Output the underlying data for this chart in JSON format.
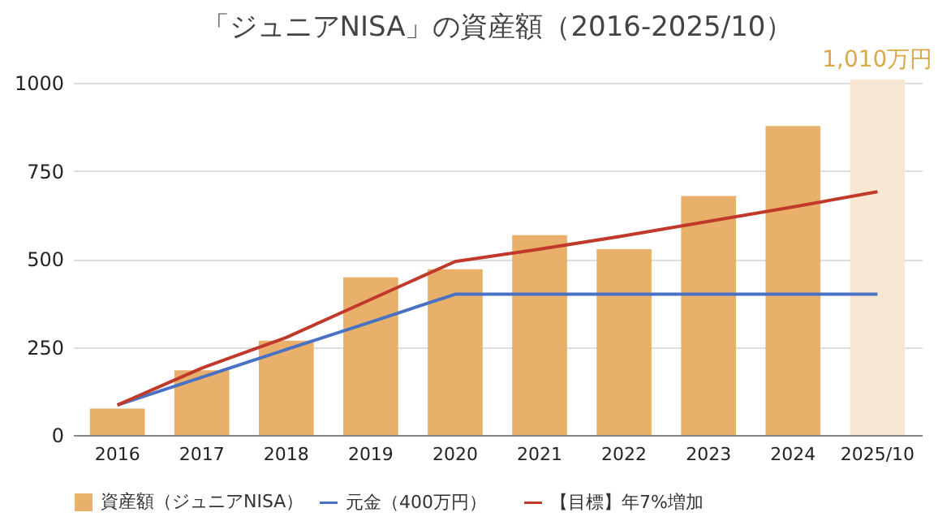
{
  "chart_data": {
    "type": "bar",
    "title": "「ジュニアNISA」の資産額（2016-2025/10）",
    "categories": [
      "2016",
      "2017",
      "2018",
      "2019",
      "2020",
      "2021",
      "2022",
      "2023",
      "2024",
      "2025/10"
    ],
    "series": [
      {
        "name": "資産額（ジュニアNISA）",
        "color": "#e8b06a",
        "colors": [
          "#e8b06a",
          "#e8b06a",
          "#e8b06a",
          "#e8b06a",
          "#e8b06a",
          "#e8b06a",
          "#e8b06a",
          "#e8b06a",
          "#e8b06a",
          "#f8e7d3"
        ],
        "values": [
          75,
          184,
          268,
          448,
          471,
          568,
          528,
          679,
          878,
          1010
        ],
        "value_labels": [
          null,
          null,
          null,
          null,
          null,
          null,
          null,
          null,
          null,
          "1,010万円"
        ]
      },
      {
        "name": "元金（400万円）",
        "type": "line",
        "color": "#4a72c4",
        "values": [
          85,
          164,
          243,
          321,
          400,
          400,
          400,
          400,
          400,
          400
        ]
      },
      {
        "name": "【目標】年7%増加",
        "type": "line",
        "color": "#c0392b",
        "values": [
          85,
          190,
          277,
          385,
          493,
          528,
          566,
          607,
          648,
          691
        ]
      }
    ],
    "ylim": [
      0,
      1010
    ],
    "yticks": [
      0,
      250,
      500,
      750,
      1000
    ],
    "grid": "y",
    "legend": "bottom",
    "marker": "none",
    "line_style": "solid"
  }
}
